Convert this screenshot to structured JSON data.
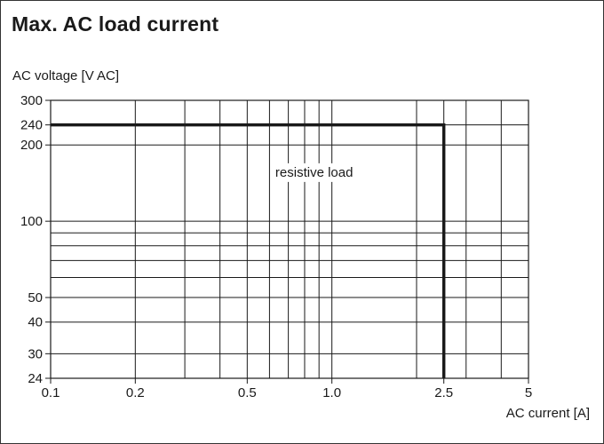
{
  "title": "Max. AC load current",
  "chart_data": {
    "type": "line",
    "title": "Max. AC load current",
    "xlabel": "AC current [A]",
    "ylabel": "AC voltage  [V AC]",
    "xscale": "log",
    "yscale": "log",
    "xlim": [
      0.1,
      5
    ],
    "ylim": [
      24,
      300
    ],
    "grid": true,
    "x_ticks": [
      "0.1",
      "0.2",
      "0.5",
      "1.0",
      "2.5",
      "5"
    ],
    "y_ticks": [
      "300",
      "240",
      "200",
      "100",
      "50",
      "40",
      "30",
      "24"
    ],
    "x_gridlines": [
      0.1,
      0.2,
      0.3,
      0.4,
      0.5,
      0.6,
      0.7,
      0.8,
      0.9,
      1.0,
      2.0,
      2.5,
      3,
      4,
      5
    ],
    "y_gridlines": [
      24,
      30,
      40,
      50,
      60,
      70,
      80,
      90,
      100,
      200,
      240,
      300
    ],
    "series": [
      {
        "name": "resistive load",
        "x": [
          0.1,
          2.5,
          2.5
        ],
        "y": [
          240,
          240,
          24
        ]
      }
    ],
    "annotations": [
      {
        "text": "resistive load",
        "x": 0.62,
        "y": 150
      }
    ],
    "colors": {
      "line": "#1a1a1a",
      "grid": "#1a1a1a"
    }
  }
}
